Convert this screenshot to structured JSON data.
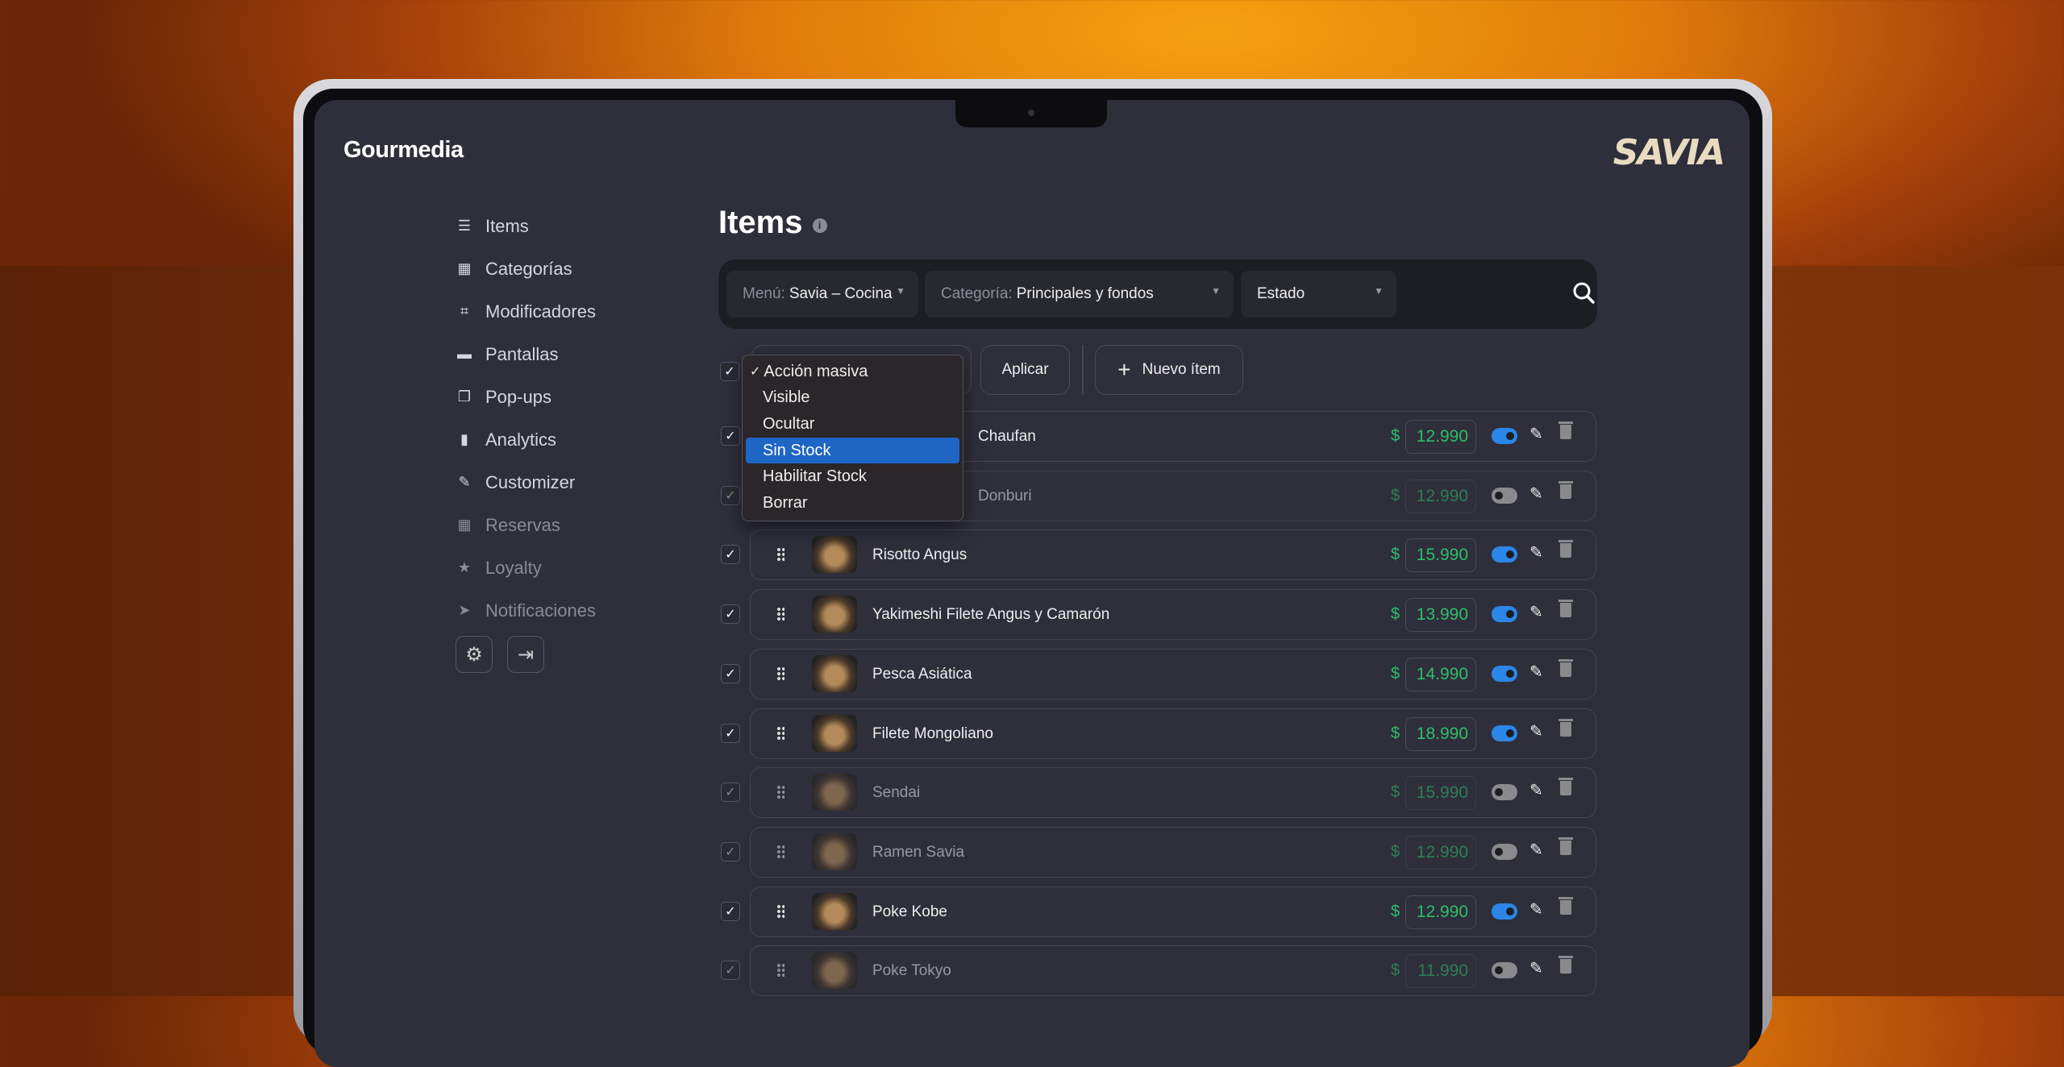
{
  "app": {
    "brand": "Gourmedia",
    "client_logo": "SAVIA"
  },
  "sidebar": {
    "items": [
      {
        "label": "Items",
        "icon": "list-icon",
        "enabled": true
      },
      {
        "label": "Categorías",
        "icon": "grid-icon",
        "enabled": true
      },
      {
        "label": "Modificadores",
        "icon": "flow-icon",
        "enabled": true
      },
      {
        "label": "Pantallas",
        "icon": "window-icon",
        "enabled": true
      },
      {
        "label": "Pop-ups",
        "icon": "popup-icon",
        "enabled": true
      },
      {
        "label": "Analytics",
        "icon": "bar-chart-icon",
        "enabled": true
      },
      {
        "label": "Customizer",
        "icon": "pencil-ruler-icon",
        "enabled": true
      },
      {
        "label": "Reservas",
        "icon": "calendar-icon",
        "enabled": false
      },
      {
        "label": "Loyalty",
        "icon": "star-icon",
        "enabled": false
      },
      {
        "label": "Notificaciones",
        "icon": "paper-plane-icon",
        "enabled": false
      }
    ],
    "settings_icon": "⚙",
    "logout_icon": "⇥"
  },
  "main": {
    "title": "Items",
    "filters": {
      "menu_label": "Menú:",
      "menu_value": "Savia – Cocina",
      "category_label": "Categoría:",
      "category_value": "Principales y fondos",
      "status_value": "Estado"
    },
    "bulk": {
      "apply": "Aplicar",
      "new_item": "Nuevo ítem",
      "options": [
        "Acción masiva",
        "Visible",
        "Ocultar",
        "Sin Stock",
        "Habilitar Stock",
        "Borrar"
      ],
      "selected": "Acción masiva",
      "highlighted": "Sin Stock"
    },
    "currency": "$",
    "rows": [
      {
        "name": "Chaufan",
        "price": "12.990",
        "visible": true,
        "checked": true
      },
      {
        "name": "Donburi",
        "price": "12.990",
        "visible": false,
        "checked": true
      },
      {
        "name": "Risotto Angus",
        "price": "15.990",
        "visible": true,
        "checked": true
      },
      {
        "name": "Yakimeshi Filete Angus y Camarón",
        "price": "13.990",
        "visible": true,
        "checked": true
      },
      {
        "name": "Pesca Asiática",
        "price": "14.990",
        "visible": true,
        "checked": true
      },
      {
        "name": "Filete Mongoliano",
        "price": "18.990",
        "visible": true,
        "checked": true
      },
      {
        "name": "Sendai",
        "price": "15.990",
        "visible": false,
        "checked": true
      },
      {
        "name": "Ramen Savia",
        "price": "12.990",
        "visible": false,
        "checked": true
      },
      {
        "name": "Poke Kobe",
        "price": "12.990",
        "visible": true,
        "checked": true
      },
      {
        "name": "Poke Tokyo",
        "price": "11.990",
        "visible": false,
        "checked": true
      }
    ]
  },
  "colors": {
    "accent": "#2b86e8",
    "price": "#2fbd6a",
    "highlight": "#1f65c4",
    "background": "#2e2f3b"
  }
}
